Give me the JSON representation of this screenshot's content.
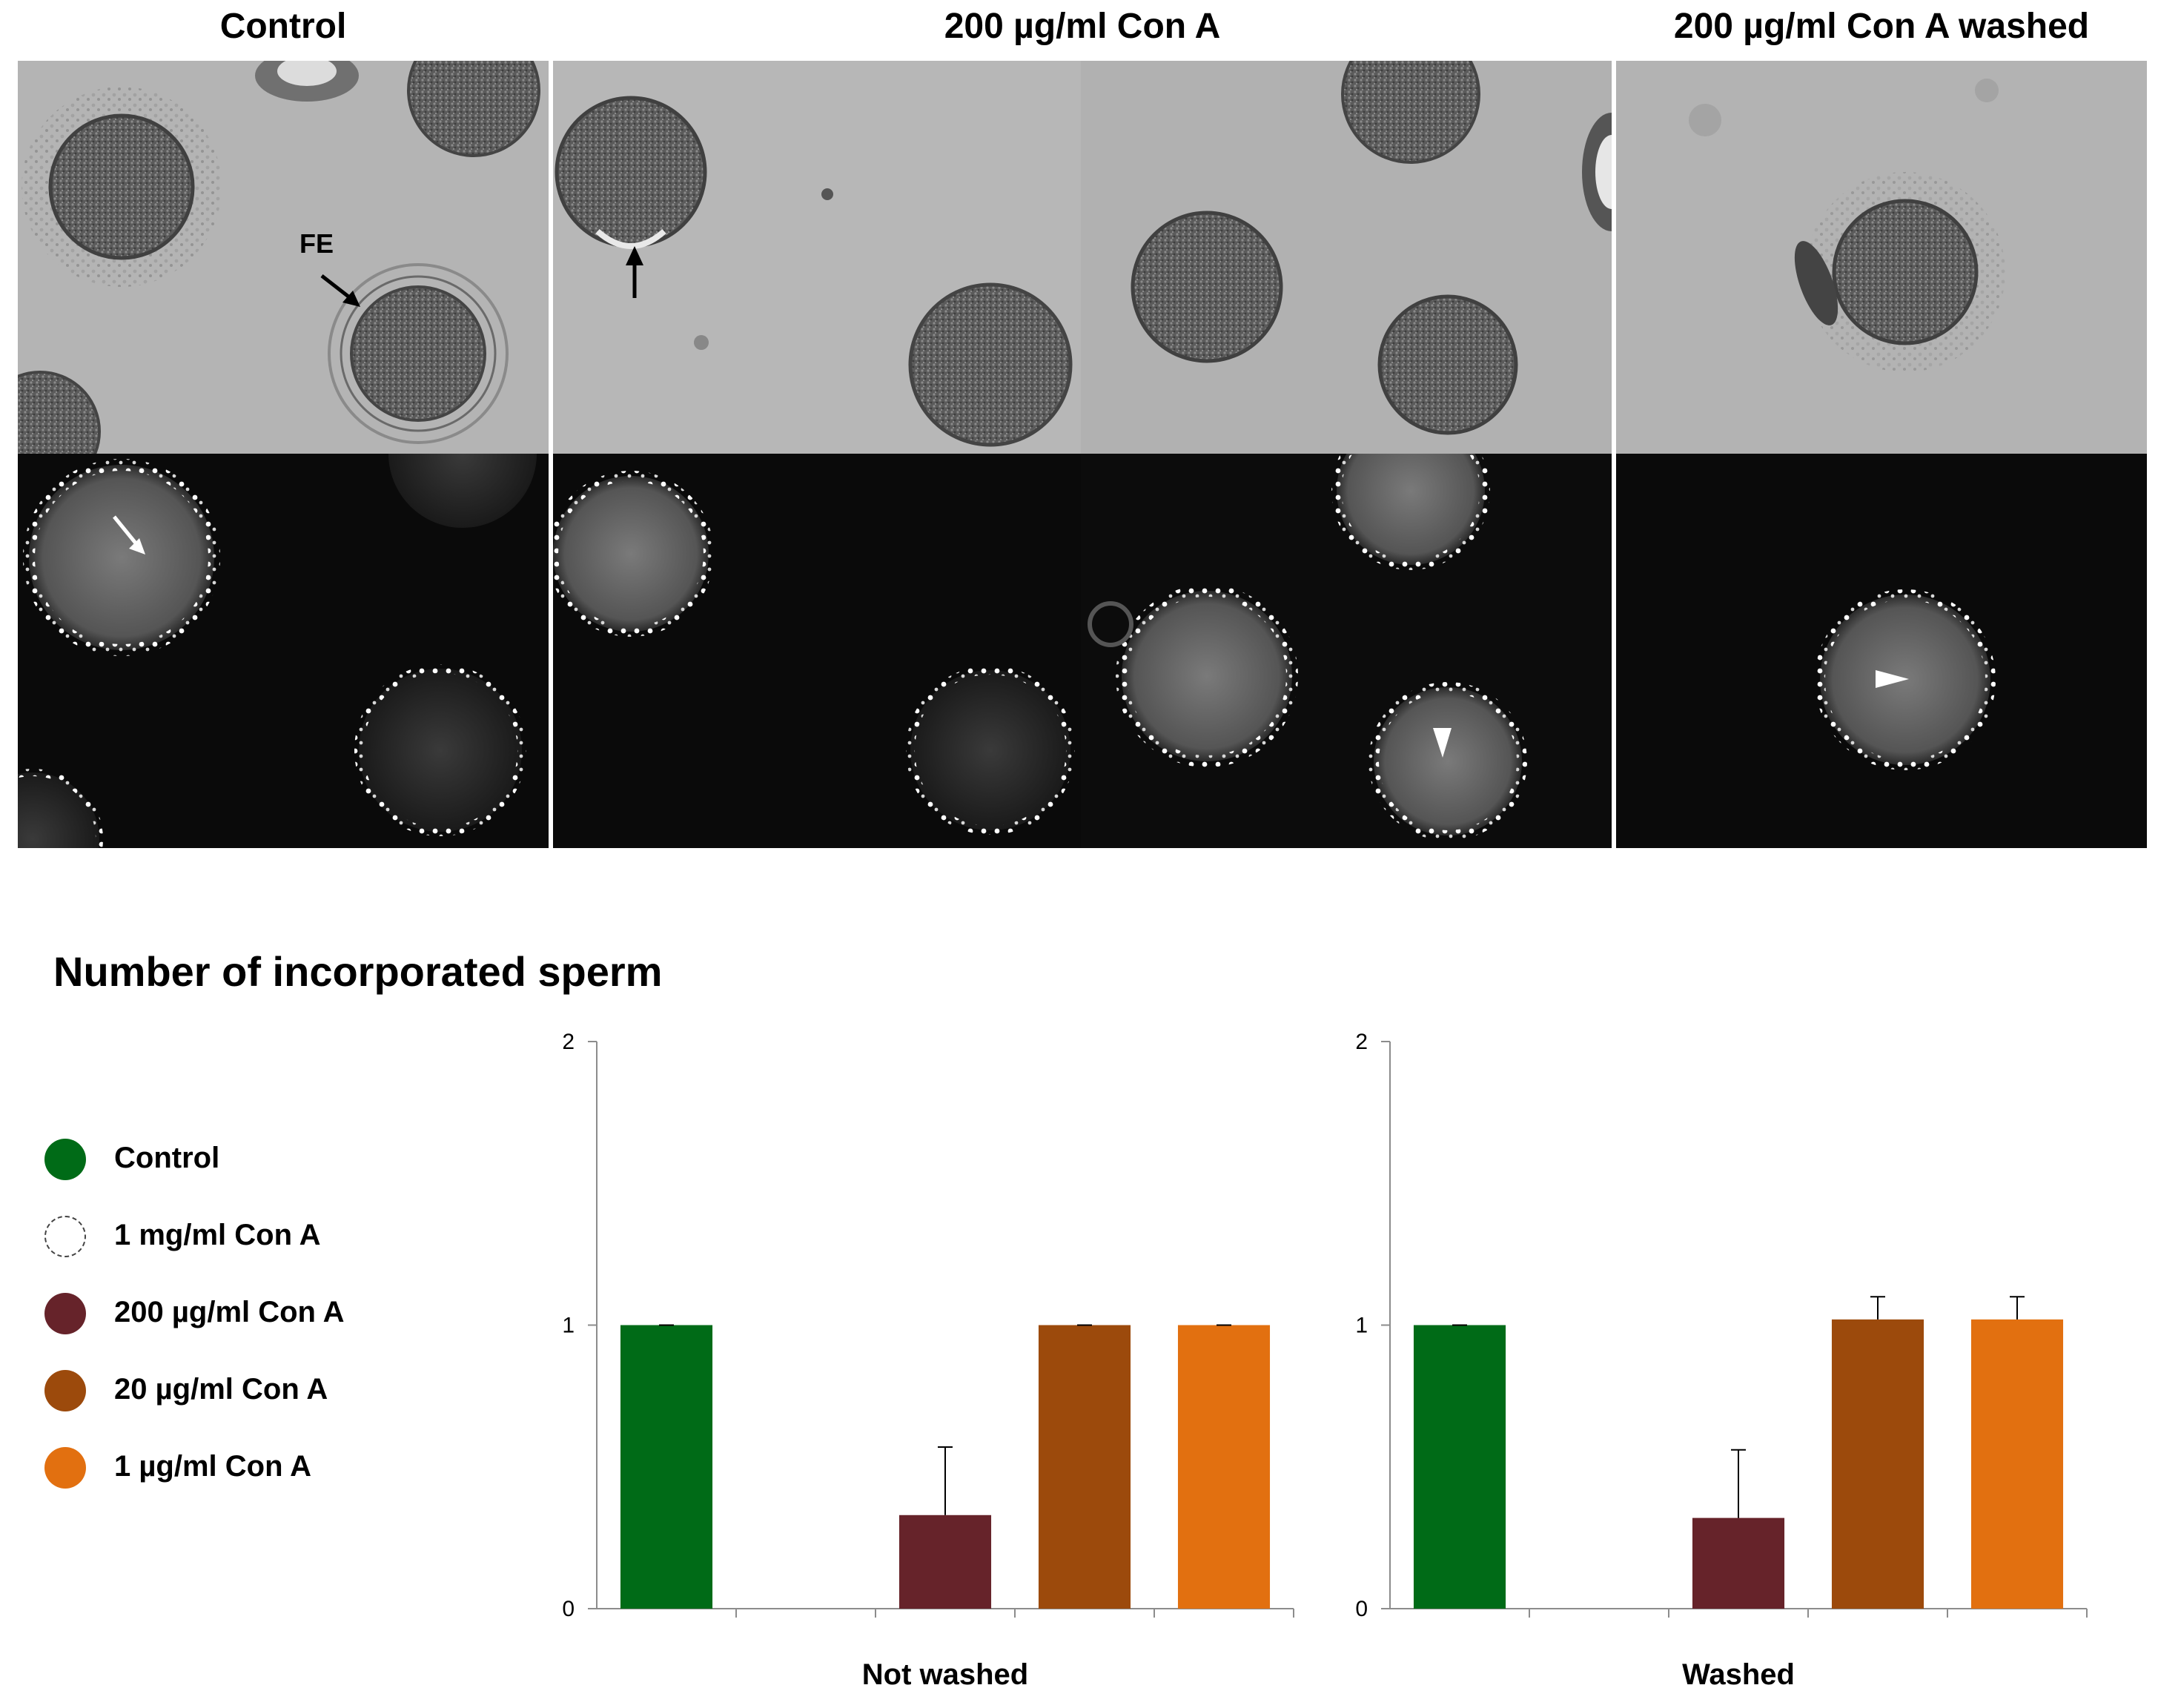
{
  "figure": {
    "panel_titles": [
      "Control",
      "200 µg/ml Con A",
      "200 µg/ml Con A washed"
    ],
    "annotations": {
      "fe_label": "FE"
    }
  },
  "chart_data": {
    "type": "bar",
    "title": "Number of incorporated sperm",
    "legend_placement": "left",
    "series": [
      {
        "name": "Control",
        "color": "#006b17"
      },
      {
        "name": "1 mg/ml Con A",
        "color": "#ffffff",
        "outline": "dashed"
      },
      {
        "name": "200 µg/ml Con A",
        "color": "#66232a"
      },
      {
        "name": "20 µg/ml Con A",
        "color": "#9c4a0c"
      },
      {
        "name": "1 µg/ml Con A",
        "color": "#e27010"
      }
    ],
    "groups": [
      {
        "label": "Not washed",
        "values": [
          1.0,
          0,
          0.33,
          1.0,
          1.0
        ],
        "errors": [
          0,
          0,
          0.24,
          0,
          0
        ]
      },
      {
        "label": "Washed",
        "values": [
          1.0,
          0,
          0.32,
          1.02,
          1.02
        ],
        "errors": [
          0,
          0,
          0.24,
          0.08,
          0.08
        ]
      }
    ],
    "ylim": [
      0,
      2
    ],
    "yticks": [
      "0",
      "1",
      "2"
    ],
    "grid": false
  }
}
